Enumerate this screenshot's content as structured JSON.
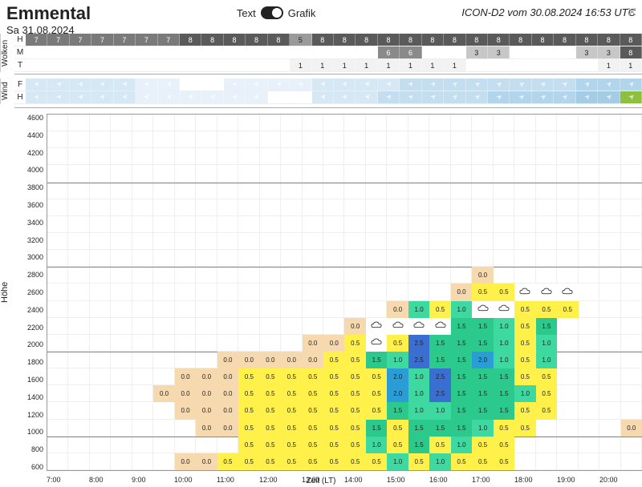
{
  "header": {
    "title": "Emmental",
    "date": "Sa 31.08.2024",
    "toggle_left": "Text",
    "toggle_right": "Grafik",
    "model": "ICON-D2 vom 30.08.2024 16:53 UTC"
  },
  "time": {
    "n_cols": 28,
    "start_hour": 7.0,
    "step_hours": 0.5,
    "x_tick_labels": [
      "7:00",
      "8:00",
      "9:00",
      "10:00",
      "11:00",
      "12:00",
      "13:00",
      "14:00",
      "15:00",
      "16:00",
      "17:00",
      "18:00",
      "19:00",
      "20:00"
    ],
    "x_axis_label": "Zeit (LT)"
  },
  "wolken": {
    "group_label": "Wolken",
    "rows": [
      "H",
      "M",
      "T"
    ],
    "H": {
      "values": [
        7,
        7,
        7,
        7,
        7,
        7,
        7,
        8,
        8,
        8,
        8,
        8,
        5,
        8,
        8,
        8,
        8,
        8,
        8,
        8,
        8,
        8,
        8,
        8,
        8,
        8,
        8,
        8
      ],
      "colors": [
        "#7a7a7a",
        "#7a7a7a",
        "#7a7a7a",
        "#7a7a7a",
        "#7a7a7a",
        "#7a7a7a",
        "#7a7a7a",
        "#5a5a5a",
        "#5a5a5a",
        "#5a5a5a",
        "#5a5a5a",
        "#5a5a5a",
        "#9a9a9a",
        "#5a5a5a",
        "#5a5a5a",
        "#5a5a5a",
        "#5a5a5a",
        "#5a5a5a",
        "#5a5a5a",
        "#5a5a5a",
        "#5a5a5a",
        "#5a5a5a",
        "#5a5a5a",
        "#5a5a5a",
        "#5a5a5a",
        "#5a5a5a",
        "#5a5a5a",
        "#5a5a5a"
      ]
    },
    "M": {
      "values": [
        null,
        null,
        null,
        null,
        null,
        null,
        null,
        null,
        null,
        null,
        null,
        null,
        null,
        null,
        null,
        null,
        6,
        6,
        null,
        null,
        3,
        3,
        null,
        null,
        null,
        3,
        3,
        8
      ],
      "colors": [
        null,
        null,
        null,
        null,
        null,
        null,
        null,
        null,
        null,
        null,
        null,
        null,
        null,
        null,
        null,
        null,
        "#8a8a8a",
        "#8a8a8a",
        null,
        null,
        "#c7c7c7",
        "#c7c7c7",
        null,
        null,
        null,
        "#c7c7c7",
        "#c7c7c7",
        "#5a5a5a"
      ]
    },
    "T": {
      "values": [
        null,
        null,
        null,
        null,
        null,
        null,
        null,
        null,
        null,
        null,
        null,
        null,
        1,
        1,
        1,
        1,
        1,
        1,
        1,
        1,
        null,
        null,
        null,
        null,
        null,
        null,
        1,
        1
      ],
      "colors": [
        null,
        null,
        null,
        null,
        null,
        null,
        null,
        null,
        null,
        null,
        null,
        null,
        "#f2f2f2",
        "#f2f2f2",
        "#f2f2f2",
        "#f2f2f2",
        "#f2f2f2",
        "#f2f2f2",
        "#f2f2f2",
        "#f2f2f2",
        null,
        null,
        null,
        null,
        null,
        null,
        "#f2f2f2",
        "#f2f2f2"
      ]
    },
    "text_color_dark": "#222",
    "text_color_light": "#fff"
  },
  "wind": {
    "group_label": "Wind",
    "rows": [
      "F",
      "H"
    ],
    "F": {
      "dirs": [
        45,
        45,
        45,
        40,
        40,
        35,
        35,
        null,
        null,
        40,
        40,
        40,
        40,
        40,
        40,
        40,
        40,
        40,
        45,
        45,
        50,
        55,
        55,
        50,
        50,
        45,
        45,
        45
      ],
      "bg": [
        "#d7e8f5",
        "#d7e8f5",
        "#d7e8f5",
        "#d7e8f5",
        "#d7e8f5",
        "#e8f1f9",
        "#e8f1f9",
        null,
        null,
        "#e8f1f9",
        "#e8f1f9",
        "#e8f1f9",
        "#e8f1f9",
        "#d7e8f5",
        "#d7e8f5",
        "#d7e8f5",
        "#d7e8f5",
        "#c4def0",
        "#c4def0",
        "#c4def0",
        "#c4def0",
        "#c4def0",
        "#c4def0",
        "#c4def0",
        "#c4def0",
        "#b3d5eb",
        "#b3d5eb",
        "#b3d5eb"
      ]
    },
    "H": {
      "dirs": [
        45,
        45,
        40,
        40,
        35,
        35,
        35,
        35,
        35,
        35,
        35,
        null,
        null,
        40,
        40,
        40,
        40,
        45,
        45,
        50,
        50,
        55,
        55,
        50,
        50,
        45,
        45,
        45
      ],
      "bg": [
        "#d7e8f5",
        "#d7e8f5",
        "#d7e8f5",
        "#d7e8f5",
        "#d7e8f5",
        "#e8f1f9",
        "#e8f1f9",
        "#e8f1f9",
        "#e8f1f9",
        "#e8f1f9",
        "#e8f1f9",
        null,
        null,
        "#d7e8f5",
        "#d7e8f5",
        "#d7e8f5",
        "#c4def0",
        "#c4def0",
        "#c4def0",
        "#c4def0",
        "#c4def0",
        "#b3d5eb",
        "#b3d5eb",
        "#b3d5eb",
        "#b3d5eb",
        "#a5cce5",
        "#a5cce5",
        "#8fbf3f"
      ]
    },
    "arrow_color": "#ffffff"
  },
  "height_chart": {
    "y_label": "Höhe",
    "y_min": 600,
    "y_max": 4800,
    "y_step": 200,
    "y_ticks": [
      4600,
      4400,
      4200,
      4000,
      3800,
      3600,
      3400,
      3200,
      3000,
      2800,
      2600,
      2400,
      2200,
      2000,
      1800,
      1600,
      1400,
      1200,
      1000,
      800,
      600
    ],
    "hlines_at": [
      4000,
      3000,
      2000,
      1000
    ],
    "hline_color": "#888888",
    "grid_color": "#eeeeee",
    "color_scale": {
      "0.0": "#f7d9b0",
      "0.5": "#fff04a",
      "1.0": "#3dd9a0",
      "1.5": "#2bc98c",
      "2.0": "#2a9cd6",
      "2.5": "#3a6ed1",
      "cloud": "#ffffff"
    },
    "cells": [
      {
        "r": 9,
        "c": 20,
        "v": "0.0"
      },
      {
        "r": 10,
        "c": 19,
        "v": "0.0"
      },
      {
        "r": 10,
        "c": 20,
        "v": "0.5"
      },
      {
        "r": 10,
        "c": 21,
        "v": "0.5"
      },
      {
        "r": 10,
        "c": 22,
        "v": "cloud"
      },
      {
        "r": 10,
        "c": 23,
        "v": "cloud"
      },
      {
        "r": 10,
        "c": 24,
        "v": "cloud"
      },
      {
        "r": 11,
        "c": 16,
        "v": "0.0"
      },
      {
        "r": 11,
        "c": 17,
        "v": "1.0"
      },
      {
        "r": 11,
        "c": 18,
        "v": "0.5"
      },
      {
        "r": 11,
        "c": 19,
        "v": "1.0"
      },
      {
        "r": 11,
        "c": 20,
        "v": "cloud"
      },
      {
        "r": 11,
        "c": 21,
        "v": "cloud"
      },
      {
        "r": 11,
        "c": 22,
        "v": "0.5"
      },
      {
        "r": 11,
        "c": 23,
        "v": "0.5"
      },
      {
        "r": 11,
        "c": 24,
        "v": "0.5"
      },
      {
        "r": 12,
        "c": 14,
        "v": "0.0"
      },
      {
        "r": 12,
        "c": 15,
        "v": "cloud"
      },
      {
        "r": 12,
        "c": 16,
        "v": "cloud"
      },
      {
        "r": 12,
        "c": 17,
        "v": "cloud"
      },
      {
        "r": 12,
        "c": 18,
        "v": "cloud"
      },
      {
        "r": 12,
        "c": 19,
        "v": "1.5"
      },
      {
        "r": 12,
        "c": 20,
        "v": "1.5"
      },
      {
        "r": 12,
        "c": 21,
        "v": "1.0"
      },
      {
        "r": 12,
        "c": 22,
        "v": "0.5"
      },
      {
        "r": 12,
        "c": 23,
        "v": "1.5"
      },
      {
        "r": 13,
        "c": 12,
        "v": "0.0"
      },
      {
        "r": 13,
        "c": 13,
        "v": "0.0"
      },
      {
        "r": 13,
        "c": 14,
        "v": "0.5"
      },
      {
        "r": 13,
        "c": 15,
        "v": "cloud"
      },
      {
        "r": 13,
        "c": 16,
        "v": "0.5"
      },
      {
        "r": 13,
        "c": 17,
        "v": "2.5"
      },
      {
        "r": 13,
        "c": 18,
        "v": "1.5"
      },
      {
        "r": 13,
        "c": 19,
        "v": "1.5"
      },
      {
        "r": 13,
        "c": 20,
        "v": "1.5"
      },
      {
        "r": 13,
        "c": 21,
        "v": "1.0"
      },
      {
        "r": 13,
        "c": 22,
        "v": "0.5"
      },
      {
        "r": 13,
        "c": 23,
        "v": "1.0"
      },
      {
        "r": 14,
        "c": 8,
        "v": "0.0"
      },
      {
        "r": 14,
        "c": 9,
        "v": "0.0"
      },
      {
        "r": 14,
        "c": 10,
        "v": "0.0"
      },
      {
        "r": 14,
        "c": 11,
        "v": "0.0"
      },
      {
        "r": 14,
        "c": 12,
        "v": "0.0"
      },
      {
        "r": 14,
        "c": 13,
        "v": "0.5"
      },
      {
        "r": 14,
        "c": 14,
        "v": "0.5"
      },
      {
        "r": 14,
        "c": 15,
        "v": "1.5"
      },
      {
        "r": 14,
        "c": 16,
        "v": "1.0"
      },
      {
        "r": 14,
        "c": 17,
        "v": "2.5"
      },
      {
        "r": 14,
        "c": 18,
        "v": "1.5"
      },
      {
        "r": 14,
        "c": 19,
        "v": "1.5"
      },
      {
        "r": 14,
        "c": 20,
        "v": "2.0"
      },
      {
        "r": 14,
        "c": 21,
        "v": "1.0"
      },
      {
        "r": 14,
        "c": 22,
        "v": "0.5"
      },
      {
        "r": 14,
        "c": 23,
        "v": "1.0"
      },
      {
        "r": 15,
        "c": 6,
        "v": "0.0"
      },
      {
        "r": 15,
        "c": 7,
        "v": "0.0"
      },
      {
        "r": 15,
        "c": 8,
        "v": "0.0"
      },
      {
        "r": 15,
        "c": 9,
        "v": "0.5"
      },
      {
        "r": 15,
        "c": 10,
        "v": "0.5"
      },
      {
        "r": 15,
        "c": 11,
        "v": "0.5"
      },
      {
        "r": 15,
        "c": 12,
        "v": "0.5"
      },
      {
        "r": 15,
        "c": 13,
        "v": "0.5"
      },
      {
        "r": 15,
        "c": 14,
        "v": "0.5"
      },
      {
        "r": 15,
        "c": 15,
        "v": "0.5"
      },
      {
        "r": 15,
        "c": 16,
        "v": "2.0"
      },
      {
        "r": 15,
        "c": 17,
        "v": "1.0"
      },
      {
        "r": 15,
        "c": 18,
        "v": "2.5"
      },
      {
        "r": 15,
        "c": 19,
        "v": "1.5"
      },
      {
        "r": 15,
        "c": 20,
        "v": "1.5"
      },
      {
        "r": 15,
        "c": 21,
        "v": "1.5"
      },
      {
        "r": 15,
        "c": 22,
        "v": "0.5"
      },
      {
        "r": 15,
        "c": 23,
        "v": "0.5"
      },
      {
        "r": 16,
        "c": 5,
        "v": "0.0"
      },
      {
        "r": 16,
        "c": 6,
        "v": "0.0"
      },
      {
        "r": 16,
        "c": 7,
        "v": "0.0"
      },
      {
        "r": 16,
        "c": 8,
        "v": "0.0"
      },
      {
        "r": 16,
        "c": 9,
        "v": "0.5"
      },
      {
        "r": 16,
        "c": 10,
        "v": "0.5"
      },
      {
        "r": 16,
        "c": 11,
        "v": "0.5"
      },
      {
        "r": 16,
        "c": 12,
        "v": "0.5"
      },
      {
        "r": 16,
        "c": 13,
        "v": "0.5"
      },
      {
        "r": 16,
        "c": 14,
        "v": "0.5"
      },
      {
        "r": 16,
        "c": 15,
        "v": "0.5"
      },
      {
        "r": 16,
        "c": 16,
        "v": "2.0"
      },
      {
        "r": 16,
        "c": 17,
        "v": "1.0"
      },
      {
        "r": 16,
        "c": 18,
        "v": "2.5"
      },
      {
        "r": 16,
        "c": 19,
        "v": "1.5"
      },
      {
        "r": 16,
        "c": 20,
        "v": "1.5"
      },
      {
        "r": 16,
        "c": 21,
        "v": "1.5"
      },
      {
        "r": 16,
        "c": 22,
        "v": "1.0"
      },
      {
        "r": 16,
        "c": 23,
        "v": "0.5"
      },
      {
        "r": 17,
        "c": 6,
        "v": "0.0"
      },
      {
        "r": 17,
        "c": 7,
        "v": "0.0"
      },
      {
        "r": 17,
        "c": 8,
        "v": "0.0"
      },
      {
        "r": 17,
        "c": 9,
        "v": "0.5"
      },
      {
        "r": 17,
        "c": 10,
        "v": "0.5"
      },
      {
        "r": 17,
        "c": 11,
        "v": "0.5"
      },
      {
        "r": 17,
        "c": 12,
        "v": "0.5"
      },
      {
        "r": 17,
        "c": 13,
        "v": "0.5"
      },
      {
        "r": 17,
        "c": 14,
        "v": "0.5"
      },
      {
        "r": 17,
        "c": 15,
        "v": "0.5"
      },
      {
        "r": 17,
        "c": 16,
        "v": "1.5"
      },
      {
        "r": 17,
        "c": 17,
        "v": "1.0"
      },
      {
        "r": 17,
        "c": 18,
        "v": "1.0"
      },
      {
        "r": 17,
        "c": 19,
        "v": "1.5"
      },
      {
        "r": 17,
        "c": 20,
        "v": "1.5"
      },
      {
        "r": 17,
        "c": 21,
        "v": "1.5"
      },
      {
        "r": 17,
        "c": 22,
        "v": "0.5"
      },
      {
        "r": 17,
        "c": 23,
        "v": "0.5"
      },
      {
        "r": 18,
        "c": 7,
        "v": "0.0"
      },
      {
        "r": 18,
        "c": 8,
        "v": "0.0"
      },
      {
        "r": 18,
        "c": 9,
        "v": "0.5"
      },
      {
        "r": 18,
        "c": 10,
        "v": "0.5"
      },
      {
        "r": 18,
        "c": 11,
        "v": "0.5"
      },
      {
        "r": 18,
        "c": 12,
        "v": "0.5"
      },
      {
        "r": 18,
        "c": 13,
        "v": "0.5"
      },
      {
        "r": 18,
        "c": 14,
        "v": "0.5"
      },
      {
        "r": 18,
        "c": 15,
        "v": "1.5"
      },
      {
        "r": 18,
        "c": 16,
        "v": "0.5"
      },
      {
        "r": 18,
        "c": 17,
        "v": "1.5"
      },
      {
        "r": 18,
        "c": 18,
        "v": "1.5"
      },
      {
        "r": 18,
        "c": 19,
        "v": "1.5"
      },
      {
        "r": 18,
        "c": 20,
        "v": "1.0"
      },
      {
        "r": 18,
        "c": 21,
        "v": "0.5"
      },
      {
        "r": 18,
        "c": 22,
        "v": "0.5"
      },
      {
        "r": 18,
        "c": 27,
        "v": "0.0"
      },
      {
        "r": 19,
        "c": 9,
        "v": "0.5"
      },
      {
        "r": 19,
        "c": 10,
        "v": "0.5"
      },
      {
        "r": 19,
        "c": 11,
        "v": "0.5"
      },
      {
        "r": 19,
        "c": 12,
        "v": "0.5"
      },
      {
        "r": 19,
        "c": 13,
        "v": "0.5"
      },
      {
        "r": 19,
        "c": 14,
        "v": "0.5"
      },
      {
        "r": 19,
        "c": 15,
        "v": "1.0"
      },
      {
        "r": 19,
        "c": 16,
        "v": "0.5"
      },
      {
        "r": 19,
        "c": 17,
        "v": "1.5"
      },
      {
        "r": 19,
        "c": 18,
        "v": "0.5"
      },
      {
        "r": 19,
        "c": 19,
        "v": "1.0"
      },
      {
        "r": 19,
        "c": 20,
        "v": "0.5"
      },
      {
        "r": 19,
        "c": 21,
        "v": "0.5"
      },
      {
        "r": 20,
        "c": 6,
        "v": "0.0"
      },
      {
        "r": 20,
        "c": 7,
        "v": "0.0"
      },
      {
        "r": 20,
        "c": 8,
        "v": "0.5"
      },
      {
        "r": 20,
        "c": 9,
        "v": "0.5"
      },
      {
        "r": 20,
        "c": 10,
        "v": "0.5"
      },
      {
        "r": 20,
        "c": 11,
        "v": "0.5"
      },
      {
        "r": 20,
        "c": 12,
        "v": "0.5"
      },
      {
        "r": 20,
        "c": 13,
        "v": "0.5"
      },
      {
        "r": 20,
        "c": 14,
        "v": "0.5"
      },
      {
        "r": 20,
        "c": 15,
        "v": "0.5"
      },
      {
        "r": 20,
        "c": 16,
        "v": "1.0"
      },
      {
        "r": 20,
        "c": 17,
        "v": "0.5"
      },
      {
        "r": 20,
        "c": 18,
        "v": "1.0"
      },
      {
        "r": 20,
        "c": 19,
        "v": "0.5"
      },
      {
        "r": 20,
        "c": 20,
        "v": "0.5"
      },
      {
        "r": 20,
        "c": 21,
        "v": "0.5"
      }
    ]
  }
}
